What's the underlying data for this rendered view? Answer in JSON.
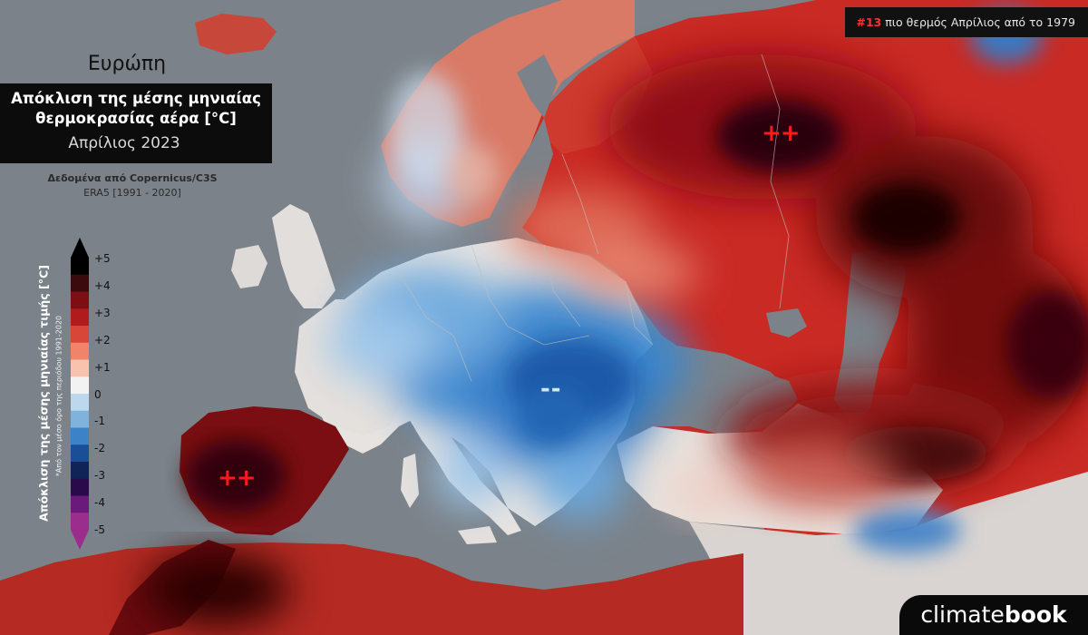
{
  "rank": {
    "number": "#13",
    "text": " πιο θερμός Απρίλιος από το 1979"
  },
  "region": "Ευρώπη",
  "title": {
    "line1": "Απόκλιση της μέσης μηνιαίας",
    "line2": "θερμοκρασίας αέρα [°C]",
    "month": "Απρίλιος 2023"
  },
  "source": {
    "line1": "Δεδομένα από Copernicus/C3S",
    "line2": "ERA5 [1991 - 2020]"
  },
  "legend": {
    "title": "Απόκλιση της μέσης μηνιαίας τιμής [°C]",
    "subtitle": "*Από τον μέσο όρο της περιόδου 1991-2020",
    "ticks": [
      "+5",
      "+4",
      "+3",
      "+2",
      "+1",
      "0",
      "-1",
      "-2",
      "-3",
      "-4",
      "-5"
    ],
    "colors": [
      "#000000",
      "#3a0a0c",
      "#7c0e14",
      "#b01c1e",
      "#d8463a",
      "#f0836a",
      "#f7c3ae",
      "#f2f2f2",
      "#bcd8ee",
      "#7fb3de",
      "#3c82c6",
      "#1a4f96",
      "#112458",
      "#2a0a4a",
      "#6a1a78",
      "#9b2d8c"
    ]
  },
  "markers": {
    "plus": "++",
    "minus": "--"
  },
  "brand": {
    "pre": "climate",
    "bold": "book"
  }
}
